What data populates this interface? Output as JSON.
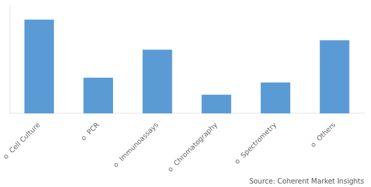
{
  "chart_data": {
    "type": "bar",
    "categories": [
      "o  Cell Culture",
      "o  PCR",
      "o  Immunoassays",
      "o  Chromatography",
      "o  Spectrometry",
      "o  Others"
    ],
    "values": [
      100,
      38,
      68,
      20,
      33,
      78
    ],
    "color": "#5b9bd5",
    "ylim": [
      0,
      115
    ],
    "grid": false,
    "tick_labels": "x",
    "annotations": [
      "Source: Coherent Market Insights"
    ]
  }
}
